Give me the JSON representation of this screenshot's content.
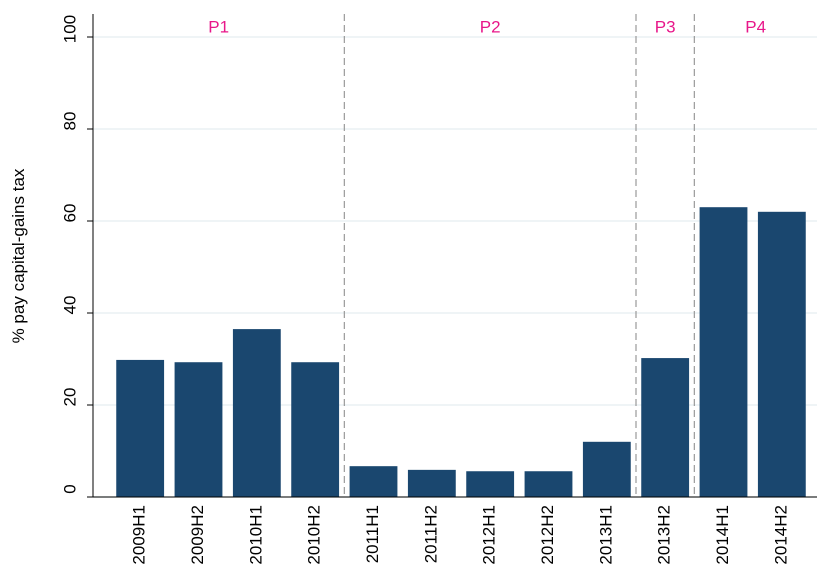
{
  "chart_data": {
    "type": "bar",
    "y_label": "% pay capital-gains tax",
    "categories": [
      "2009H1",
      "2009H2",
      "2010H1",
      "2010H2",
      "2011H1",
      "2011H2",
      "2012H1",
      "2012H2",
      "2013H1",
      "2013H2",
      "2014H1",
      "2014H2"
    ],
    "values": [
      29.8,
      29.3,
      36.5,
      29.3,
      6.7,
      5.9,
      5.6,
      5.6,
      12,
      30.2,
      63,
      62
    ],
    "color": "#1a476f",
    "ylim": [
      0,
      105
    ],
    "yticks": [
      0,
      20,
      40,
      60,
      80,
      100
    ],
    "grid": true,
    "periods": [
      {
        "label": "P1",
        "start": 0,
        "end": 3
      },
      {
        "label": "P2",
        "start": 4,
        "end": 8
      },
      {
        "label": "P3",
        "start": 9,
        "end": 9
      },
      {
        "label": "P4",
        "start": 10,
        "end": 11
      }
    ],
    "period_color": "#e8178a"
  }
}
